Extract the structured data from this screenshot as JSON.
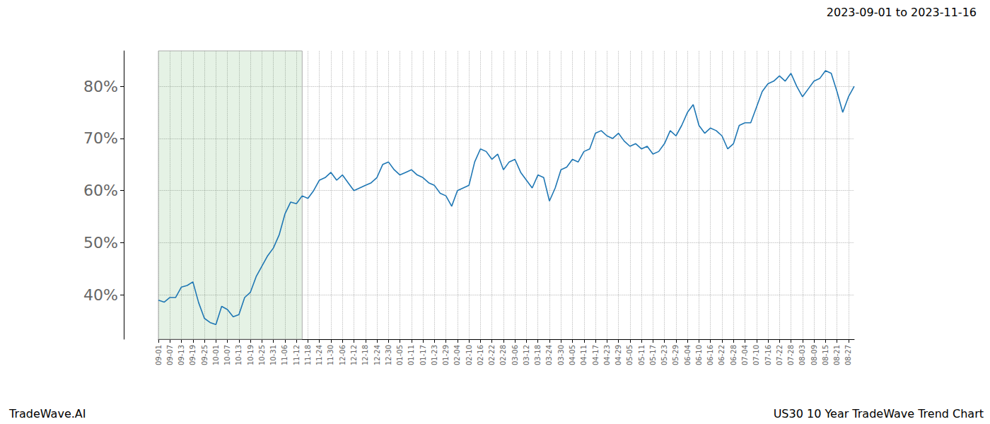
{
  "chart_data": {
    "type": "line",
    "title": "US30 10 Year TradeWave Trend Chart",
    "subtitle": "2023-09-01 to 2023-11-16",
    "annotations": [
      {
        "text": "TradeWave.AI"
      }
    ],
    "highlight": {
      "from": 0,
      "to": 25
    },
    "categories": [
      "09-01",
      null,
      "09-07",
      null,
      "09-13",
      null,
      "09-19",
      null,
      "09-25",
      null,
      "10-01",
      null,
      "10-07",
      null,
      "10-13",
      null,
      "10-19",
      null,
      "10-25",
      null,
      "10-31",
      null,
      "11-06",
      null,
      "11-12",
      null,
      "11-18",
      null,
      "11-24",
      null,
      "11-30",
      null,
      "12-06",
      null,
      "12-12",
      null,
      "12-18",
      null,
      "12-24",
      null,
      "12-30",
      null,
      "01-05",
      null,
      "01-11",
      null,
      "01-17",
      null,
      "01-23",
      null,
      "01-29",
      null,
      "02-04",
      null,
      "02-10",
      null,
      "02-16",
      null,
      "02-22",
      null,
      "02-28",
      null,
      "03-06",
      null,
      "03-12",
      null,
      "03-18",
      null,
      "03-24",
      null,
      "03-30",
      null,
      "04-05",
      null,
      "04-11",
      null,
      "04-17",
      null,
      "04-23",
      null,
      "04-29",
      null,
      "05-05",
      null,
      "05-11",
      null,
      "05-17",
      null,
      "05-23",
      null,
      "05-29",
      null,
      "06-04",
      null,
      "06-10",
      null,
      "06-16",
      null,
      "06-22",
      null,
      "06-28",
      null,
      "07-04",
      null,
      "07-10",
      null,
      "07-16",
      null,
      "07-22",
      null,
      "07-28",
      null,
      "08-03",
      null,
      "08-09",
      null,
      "08-15",
      null,
      "08-21",
      null,
      "08-27",
      null
    ],
    "values": [
      39.0,
      38.6,
      39.5,
      39.5,
      41.5,
      41.8,
      42.5,
      38.5,
      35.5,
      34.7,
      34.3,
      37.8,
      37.2,
      35.8,
      36.2,
      39.5,
      40.5,
      43.5,
      45.5,
      47.5,
      49.0,
      51.5,
      55.5,
      57.8,
      57.5,
      59.0,
      58.5,
      60.0,
      62.0,
      62.5,
      63.5,
      62.0,
      63.0,
      61.5,
      60.0,
      60.5,
      61.0,
      61.5,
      62.5,
      65.0,
      65.5,
      64.0,
      63.0,
      63.5,
      64.0,
      63.0,
      62.5,
      61.5,
      61.0,
      59.5,
      59.0,
      57.0,
      60.0,
      60.5,
      61.0,
      65.5,
      68.0,
      67.5,
      66.0,
      67.0,
      64.0,
      65.5,
      66.0,
      63.5,
      62.0,
      60.5,
      63.0,
      62.5,
      58.0,
      60.5,
      64.0,
      64.5,
      66.0,
      65.5,
      67.5,
      68.0,
      71.0,
      71.5,
      70.5,
      70.0,
      71.0,
      69.5,
      68.5,
      69.0,
      68.0,
      68.5,
      67.0,
      67.5,
      69.0,
      71.5,
      70.5,
      72.5,
      75.0,
      76.5,
      72.5,
      71.0,
      72.0,
      71.5,
      70.5,
      68.0,
      69.0,
      72.5,
      73.0,
      73.0,
      76.0,
      79.0,
      80.5,
      81.0,
      82.0,
      81.0,
      82.5,
      80.0,
      78.0,
      79.5,
      81.0,
      81.5,
      83.0,
      82.5,
      79.0,
      75.0,
      78.0,
      80.0
    ],
    "color": "#1f77b4",
    "ylim": [
      31.5,
      86.8
    ],
    "yticks": [
      {
        "value": 40,
        "label": "40%"
      },
      {
        "value": 50,
        "label": "50%"
      },
      {
        "value": 60,
        "label": "60%"
      },
      {
        "value": 70,
        "label": "70%"
      },
      {
        "value": 80,
        "label": "80%"
      }
    ],
    "grid": true
  }
}
